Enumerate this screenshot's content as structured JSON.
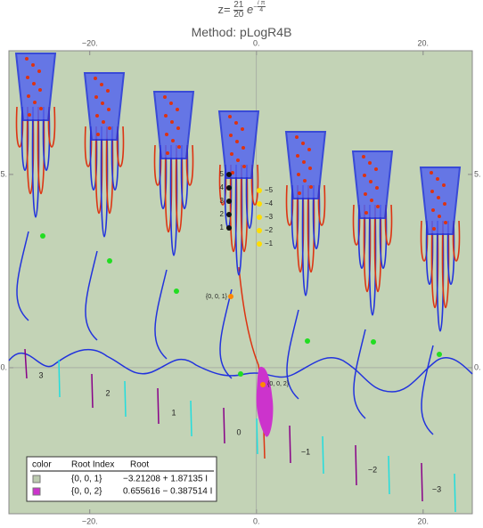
{
  "chart_data": {
    "type": "complex-plot",
    "title": {
      "prefix": "z=",
      "numerator": "21",
      "denominator": "20",
      "base": "e",
      "exponent_sign": "−",
      "exponent_numerator": "𝑖 π",
      "exponent_denominator": "4"
    },
    "subtitle": "Method: pLogR4B",
    "xlim": [
      -29.7,
      25.9
    ],
    "ylim": [
      -3.78,
      8.2
    ],
    "xticks": [
      {
        "value": -20,
        "label": "−20."
      },
      {
        "value": 0,
        "label": "0."
      },
      {
        "value": 20,
        "label": "20."
      }
    ],
    "yticks": [
      {
        "value": 0,
        "label": "0."
      },
      {
        "value": 5,
        "label": "5."
      }
    ],
    "branch_labels": [
      "3",
      "2",
      "1",
      "0",
      "−1",
      "−2",
      "−3"
    ],
    "left_labels": [
      "5",
      "4",
      "3",
      "2",
      "1"
    ],
    "right_labels": [
      "−5",
      "−4",
      "−3",
      "−2",
      "−1"
    ],
    "root_labels": [
      "{0, 0, 1}",
      "{0, 0, 2}"
    ],
    "legend": {
      "header": [
        "color",
        "Root Index",
        "Root"
      ],
      "rows": [
        {
          "color": "#bccbb0",
          "index": "{0, 0, 1}",
          "root": "−3.21208 + 1.87135 I"
        },
        {
          "color": "#cc33cc",
          "index": "{0, 0, 2}",
          "root": "0.655616 − 0.387514 I"
        }
      ]
    }
  }
}
